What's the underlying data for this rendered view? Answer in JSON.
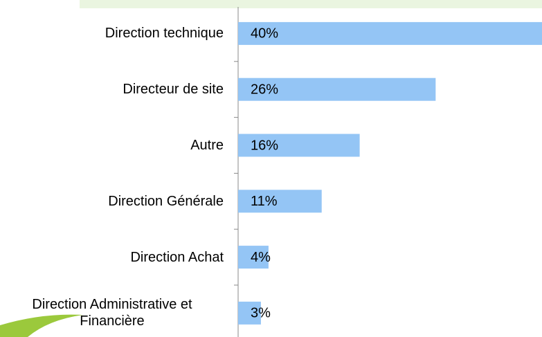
{
  "chart_data": {
    "type": "bar",
    "orientation": "horizontal",
    "categories": [
      "Direction technique",
      "Directeur de site",
      "Autre",
      "Direction Générale",
      "Direction Achat",
      "Direction Administrative et Financière"
    ],
    "values": [
      40,
      26,
      16,
      11,
      4,
      3
    ],
    "value_labels": [
      "40%",
      "26%",
      "16%",
      "11%",
      "4%",
      "3%"
    ],
    "color": "#94c5f5",
    "xlim": [
      0,
      40
    ]
  }
}
